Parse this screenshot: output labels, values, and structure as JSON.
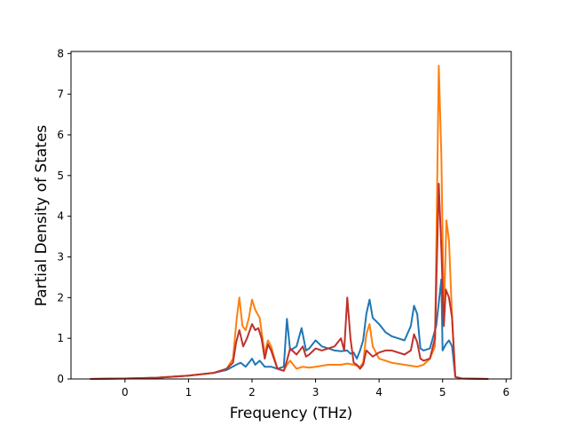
{
  "chart_data": {
    "type": "line",
    "title": "",
    "xlabel": "Frequency (THz)",
    "ylabel": "Partial Density of States",
    "xlim": [
      -0.85,
      6.08
    ],
    "ylim": [
      0,
      8.05
    ],
    "xticks": [
      0,
      1,
      2,
      3,
      4,
      5,
      6
    ],
    "yticks": [
      0,
      1,
      2,
      3,
      4,
      5,
      6,
      7,
      8
    ],
    "grid": false,
    "legend": "none",
    "series": [
      {
        "color": "#1f77b4",
        "x": [
          -0.55,
          0,
          0.5,
          1,
          1.4,
          1.6,
          1.75,
          1.82,
          1.9,
          2.0,
          2.05,
          2.12,
          2.2,
          2.3,
          2.4,
          2.5,
          2.55,
          2.6,
          2.7,
          2.78,
          2.85,
          2.9,
          3.0,
          3.1,
          3.2,
          3.3,
          3.4,
          3.5,
          3.55,
          3.6,
          3.65,
          3.7,
          3.75,
          3.8,
          3.85,
          3.9,
          4.0,
          4.1,
          4.2,
          4.3,
          4.4,
          4.5,
          4.55,
          4.6,
          4.65,
          4.7,
          4.8,
          4.9,
          4.98,
          5.0,
          5.05,
          5.1,
          5.15,
          5.2,
          5.3,
          5.72
        ],
        "y": [
          0,
          0.01,
          0.03,
          0.08,
          0.15,
          0.22,
          0.35,
          0.4,
          0.3,
          0.5,
          0.35,
          0.45,
          0.3,
          0.3,
          0.25,
          0.3,
          1.48,
          0.7,
          0.8,
          1.25,
          0.7,
          0.75,
          0.95,
          0.8,
          0.75,
          0.7,
          0.68,
          0.7,
          0.62,
          0.65,
          0.5,
          0.7,
          0.95,
          1.6,
          1.95,
          1.5,
          1.35,
          1.15,
          1.05,
          1.0,
          0.95,
          1.3,
          1.8,
          1.6,
          0.75,
          0.7,
          0.75,
          1.3,
          2.45,
          0.7,
          0.85,
          0.95,
          0.8,
          0.05,
          0.01,
          0
        ]
      },
      {
        "color": "#ff7f0e",
        "x": [
          -0.55,
          0,
          0.5,
          1,
          1.4,
          1.6,
          1.7,
          1.76,
          1.8,
          1.85,
          1.9,
          1.95,
          2.0,
          2.05,
          2.12,
          2.2,
          2.25,
          2.3,
          2.4,
          2.5,
          2.55,
          2.6,
          2.7,
          2.8,
          2.9,
          3.0,
          3.2,
          3.4,
          3.5,
          3.6,
          3.7,
          3.75,
          3.8,
          3.85,
          3.9,
          4.0,
          4.2,
          4.4,
          4.6,
          4.7,
          4.8,
          4.88,
          4.94,
          4.98,
          5.02,
          5.06,
          5.1,
          5.15,
          5.2,
          5.3,
          5.72
        ],
        "y": [
          0,
          0.01,
          0.03,
          0.08,
          0.15,
          0.25,
          0.5,
          1.5,
          2.0,
          1.3,
          1.2,
          1.5,
          1.95,
          1.7,
          1.5,
          0.6,
          0.95,
          0.8,
          0.25,
          0.2,
          0.35,
          0.45,
          0.25,
          0.3,
          0.28,
          0.3,
          0.35,
          0.35,
          0.38,
          0.35,
          0.3,
          0.4,
          1.1,
          1.35,
          0.8,
          0.5,
          0.4,
          0.35,
          0.3,
          0.35,
          0.5,
          0.8,
          7.7,
          5.5,
          1.5,
          3.9,
          3.4,
          1.5,
          0.05,
          0.01,
          0
        ]
      },
      {
        "color": "#c0312b",
        "x": [
          -0.55,
          0,
          0.5,
          1,
          1.4,
          1.6,
          1.7,
          1.75,
          1.8,
          1.86,
          1.92,
          2.0,
          2.05,
          2.1,
          2.15,
          2.2,
          2.25,
          2.3,
          2.4,
          2.5,
          2.55,
          2.6,
          2.7,
          2.8,
          2.85,
          2.9,
          3.0,
          3.1,
          3.2,
          3.3,
          3.4,
          3.45,
          3.5,
          3.55,
          3.6,
          3.65,
          3.7,
          3.75,
          3.8,
          3.9,
          4.0,
          4.1,
          4.2,
          4.3,
          4.4,
          4.5,
          4.55,
          4.6,
          4.65,
          4.7,
          4.8,
          4.88,
          4.94,
          4.98,
          5.02,
          5.05,
          5.1,
          5.15,
          5.2,
          5.3,
          5.72
        ],
        "y": [
          0,
          0.01,
          0.03,
          0.08,
          0.15,
          0.25,
          0.4,
          0.9,
          1.2,
          0.8,
          1.0,
          1.35,
          1.2,
          1.25,
          1.0,
          0.5,
          0.85,
          0.7,
          0.25,
          0.2,
          0.45,
          0.75,
          0.6,
          0.8,
          0.55,
          0.6,
          0.75,
          0.7,
          0.75,
          0.8,
          1.0,
          0.7,
          2.0,
          1.0,
          0.4,
          0.35,
          0.25,
          0.35,
          0.7,
          0.55,
          0.65,
          0.7,
          0.7,
          0.65,
          0.6,
          0.7,
          1.1,
          0.9,
          0.5,
          0.45,
          0.5,
          1.0,
          4.8,
          3.2,
          1.3,
          2.2,
          2.0,
          1.5,
          0.05,
          0.01,
          0
        ]
      }
    ]
  }
}
